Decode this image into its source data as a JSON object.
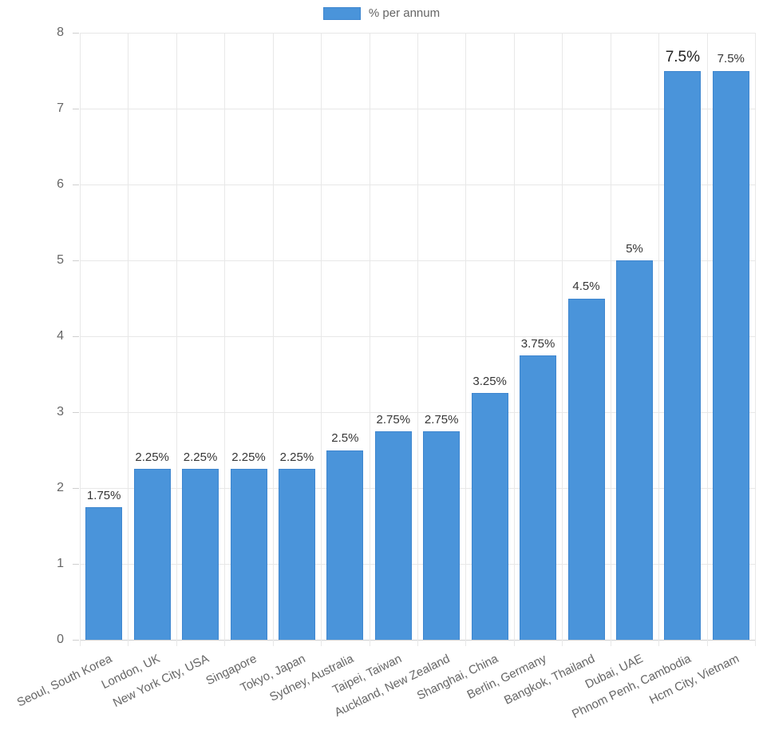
{
  "chart_data": {
    "type": "bar",
    "title": "",
    "xlabel": "",
    "ylabel": "",
    "legend_label": "% per annum",
    "legend_position": "top",
    "grid": "on",
    "categories": [
      "Seoul, South Korea",
      "London, UK",
      "New York City, USA",
      "Singapore",
      "Tokyo, Japan",
      "Sydney, Australia",
      "Taipei, Taiwan",
      "Auckland, New Zealand",
      "Shanghai, China",
      "Berlin, Germany",
      "Bangkok, Thailand",
      "Dubai, UAE",
      "Phnom Penh, Cambodia",
      "Hcm City, Vietnam"
    ],
    "series": [
      {
        "name": "% per annum",
        "values": [
          1.75,
          2.25,
          2.25,
          2.25,
          2.25,
          2.5,
          2.75,
          2.75,
          3.25,
          3.75,
          4.5,
          5,
          7.5,
          7.5
        ]
      }
    ],
    "value_labels": [
      "1.75%",
      "2.25%",
      "2.25%",
      "2.25%",
      "2.25%",
      "2.5%",
      "2.75%",
      "2.75%",
      "3.25%",
      "3.75%",
      "4.5%",
      "5%",
      "7.5%",
      "7.5%"
    ],
    "highlighted_value_index": 12,
    "ylim": [
      0,
      8
    ],
    "yticks": [
      0,
      1,
      2,
      3,
      4,
      5,
      6,
      7,
      8
    ],
    "colors": {
      "bar_fill": "#4a94da",
      "bar_border": "#3e86cf",
      "gridline": "#e8e8e8",
      "axis_line": "#cfcfcf",
      "tick_text": "#666666",
      "value_text": "#363636"
    }
  }
}
